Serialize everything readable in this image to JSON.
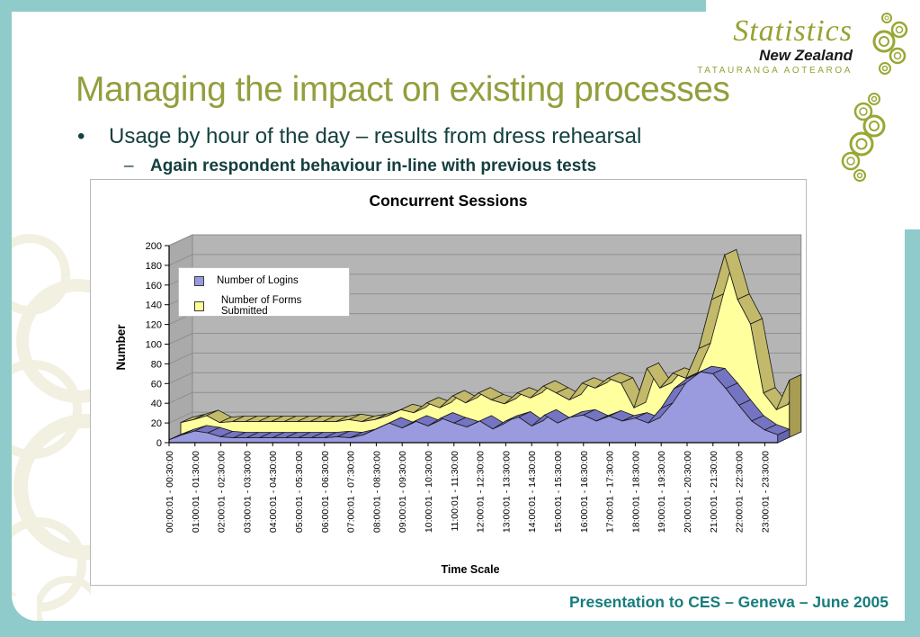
{
  "slide": {
    "title": "Managing the impact on existing processes",
    "bullet_char": "•",
    "bullet_text": "Usage by hour of the day – results from dress rehearsal",
    "dash_char": "–",
    "sub_bullet_text": "Again respondent behaviour in-line with previous tests",
    "footer": "Presentation to CES – Geneva –  June 2005",
    "colors": {
      "frame_teal": "#8fcbca",
      "title_olive": "#949e3d",
      "body_teal": "#14403f",
      "footer_teal": "#177c7d",
      "logo_olive": "#97a233",
      "pattern_cream": "#f2f0e1"
    }
  },
  "logo": {
    "line1": "Statistics",
    "line2": "New Zealand",
    "line3": "TATAURANGA AOTEAROA",
    "mark": "koru-circle-chain"
  },
  "chart_data": {
    "type": "area",
    "style": "3d-area",
    "title": "Concurrent Sessions",
    "xlabel": "Time Scale",
    "ylabel": "Number",
    "ylim": [
      0,
      200
    ],
    "ytick_step": 20,
    "grid": true,
    "legend_position": "upper-left-inside",
    "wall_color": "#b5b5b5",
    "points_per_label": 2,
    "x_labels": [
      "00:00:01 - 00:30:00",
      "01:00:01 - 01:30:00",
      "02:00:01 - 02:30:00",
      "03:00:01 - 03:30:00",
      "04:00:01 - 04:30:00",
      "05:00:01 - 05:30:00",
      "06:00:01 - 06:30:00",
      "07:00:01 - 07:30:00",
      "08:00:01 - 08:30:00",
      "09:00:01 - 09:30:00",
      "10:00:01 - 10:30:00",
      "11:00:01 - 11:30:00",
      "12:00:01 - 12:30:00",
      "13:00:01 - 13:30:00",
      "14:00:01 - 14:30:00",
      "15:00:01 - 15:30:00",
      "16:00:01 - 16:30:00",
      "17:00:01 - 17:30:00",
      "18:00:01 - 18:30:00",
      "19:00:01 - 19:30:00",
      "20:00:01 - 20:30:00",
      "21:00:01 - 21:30:00",
      "22:00:01 - 22:30:00",
      "23:00:01 - 23:30:00"
    ],
    "series": [
      {
        "name": "Number of Logins",
        "color": "#9a9ade",
        "top_color": "#7474c2",
        "cap_color": "#6666b0",
        "values": [
          3,
          8,
          12,
          10,
          6,
          5,
          5,
          5,
          5,
          5,
          5,
          5,
          5,
          6,
          5,
          8,
          14,
          20,
          15,
          22,
          17,
          25,
          20,
          16,
          22,
          14,
          22,
          26,
          17,
          28,
          20,
          26,
          28,
          22,
          27,
          22,
          25,
          20,
          35,
          55,
          65,
          72,
          70,
          55,
          38,
          22,
          13,
          8
        ]
      },
      {
        "name": "Number of Forms Submitted",
        "color": "#ffff9e",
        "top_color": "#c2ba6a",
        "cap_color": "#a89d52",
        "values": [
          15,
          18,
          22,
          15,
          16,
          16,
          16,
          16,
          16,
          16,
          16,
          16,
          16,
          18,
          16,
          18,
          22,
          28,
          25,
          35,
          30,
          42,
          35,
          45,
          38,
          34,
          45,
          40,
          52,
          45,
          38,
          55,
          50,
          60,
          55,
          30,
          70,
          50,
          65,
          60,
          90,
          140,
          185,
          140,
          115,
          45,
          28,
          58
        ]
      }
    ]
  }
}
